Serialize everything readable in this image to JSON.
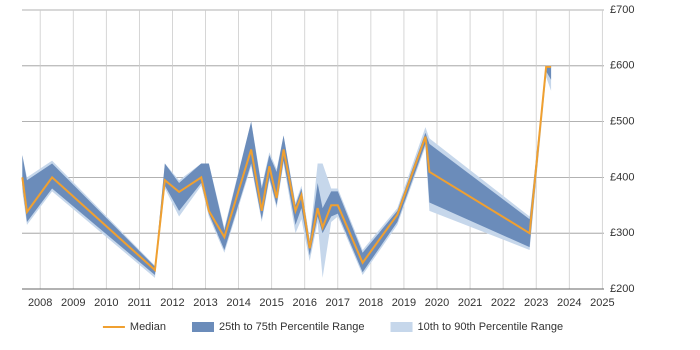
{
  "chart_data": {
    "type": "range-line",
    "x": [
      2007.46,
      2007.6,
      2008.36,
      2011.47,
      2011.77,
      2012.2,
      2012.87,
      2013.1,
      2013.57,
      2014.38,
      2014.7,
      2014.93,
      2015.15,
      2015.36,
      2015.72,
      2015.9,
      2016.15,
      2016.39,
      2016.54,
      2016.8,
      2017,
      2017.75,
      2018.8,
      2019.65,
      2019.77,
      2022.8,
      2023.3,
      2023.45
    ],
    "series": [
      {
        "name": "Median",
        "color": "#f0a030",
        "values": [
          400,
          338,
          400,
          234,
          395,
          374,
          400,
          340,
          293,
          450,
          340,
          420,
          363,
          450,
          340,
          368,
          273,
          345,
          310,
          350,
          350,
          247,
          333,
          473,
          410,
          300,
          598,
          598
        ]
      },
      {
        "name": "25th to 75th Percentile Range",
        "color": "#6b8cba",
        "high": [
          440,
          395,
          425,
          240,
          425,
          390,
          425,
          425,
          305,
          500,
          380,
          440,
          410,
          475,
          350,
          380,
          285,
          390,
          345,
          375,
          375,
          265,
          340,
          480,
          460,
          325,
          600,
          600
        ],
        "low": [
          385,
          320,
          380,
          225,
          385,
          340,
          390,
          335,
          270,
          425,
          325,
          400,
          350,
          430,
          315,
          345,
          260,
          330,
          300,
          330,
          335,
          230,
          320,
          460,
          355,
          275,
          590,
          575
        ]
      },
      {
        "name": "10th to 90th Percentile Range",
        "color": "#c6d7eb",
        "high": [
          440,
          400,
          430,
          242,
          425,
          395,
          425,
          425,
          310,
          500,
          385,
          445,
          415,
          475,
          355,
          385,
          290,
          425,
          425,
          380,
          380,
          270,
          345,
          490,
          470,
          330,
          600,
          600
        ],
        "low": [
          375,
          315,
          375,
          220,
          380,
          330,
          385,
          330,
          265,
          420,
          320,
          395,
          345,
          425,
          300,
          325,
          250,
          320,
          220,
          320,
          330,
          225,
          315,
          455,
          340,
          270,
          580,
          555
        ]
      }
    ],
    "xlim": [
      2007.45,
      2025.05
    ],
    "xticks": [
      2008,
      2009,
      2010,
      2011,
      2012,
      2013,
      2014,
      2015,
      2016,
      2017,
      2018,
      2019,
      2020,
      2021,
      2022,
      2023,
      2024,
      2025
    ],
    "ylim": [
      200,
      700
    ],
    "yticks": [
      {
        "value": 200,
        "label": "£200"
      },
      {
        "value": 300,
        "label": "£300"
      },
      {
        "value": 400,
        "label": "£400"
      },
      {
        "value": 500,
        "label": "£500"
      },
      {
        "value": 600,
        "label": "£600"
      },
      {
        "value": 700,
        "label": "£700"
      }
    ],
    "grid": true,
    "legend": "bottom"
  }
}
